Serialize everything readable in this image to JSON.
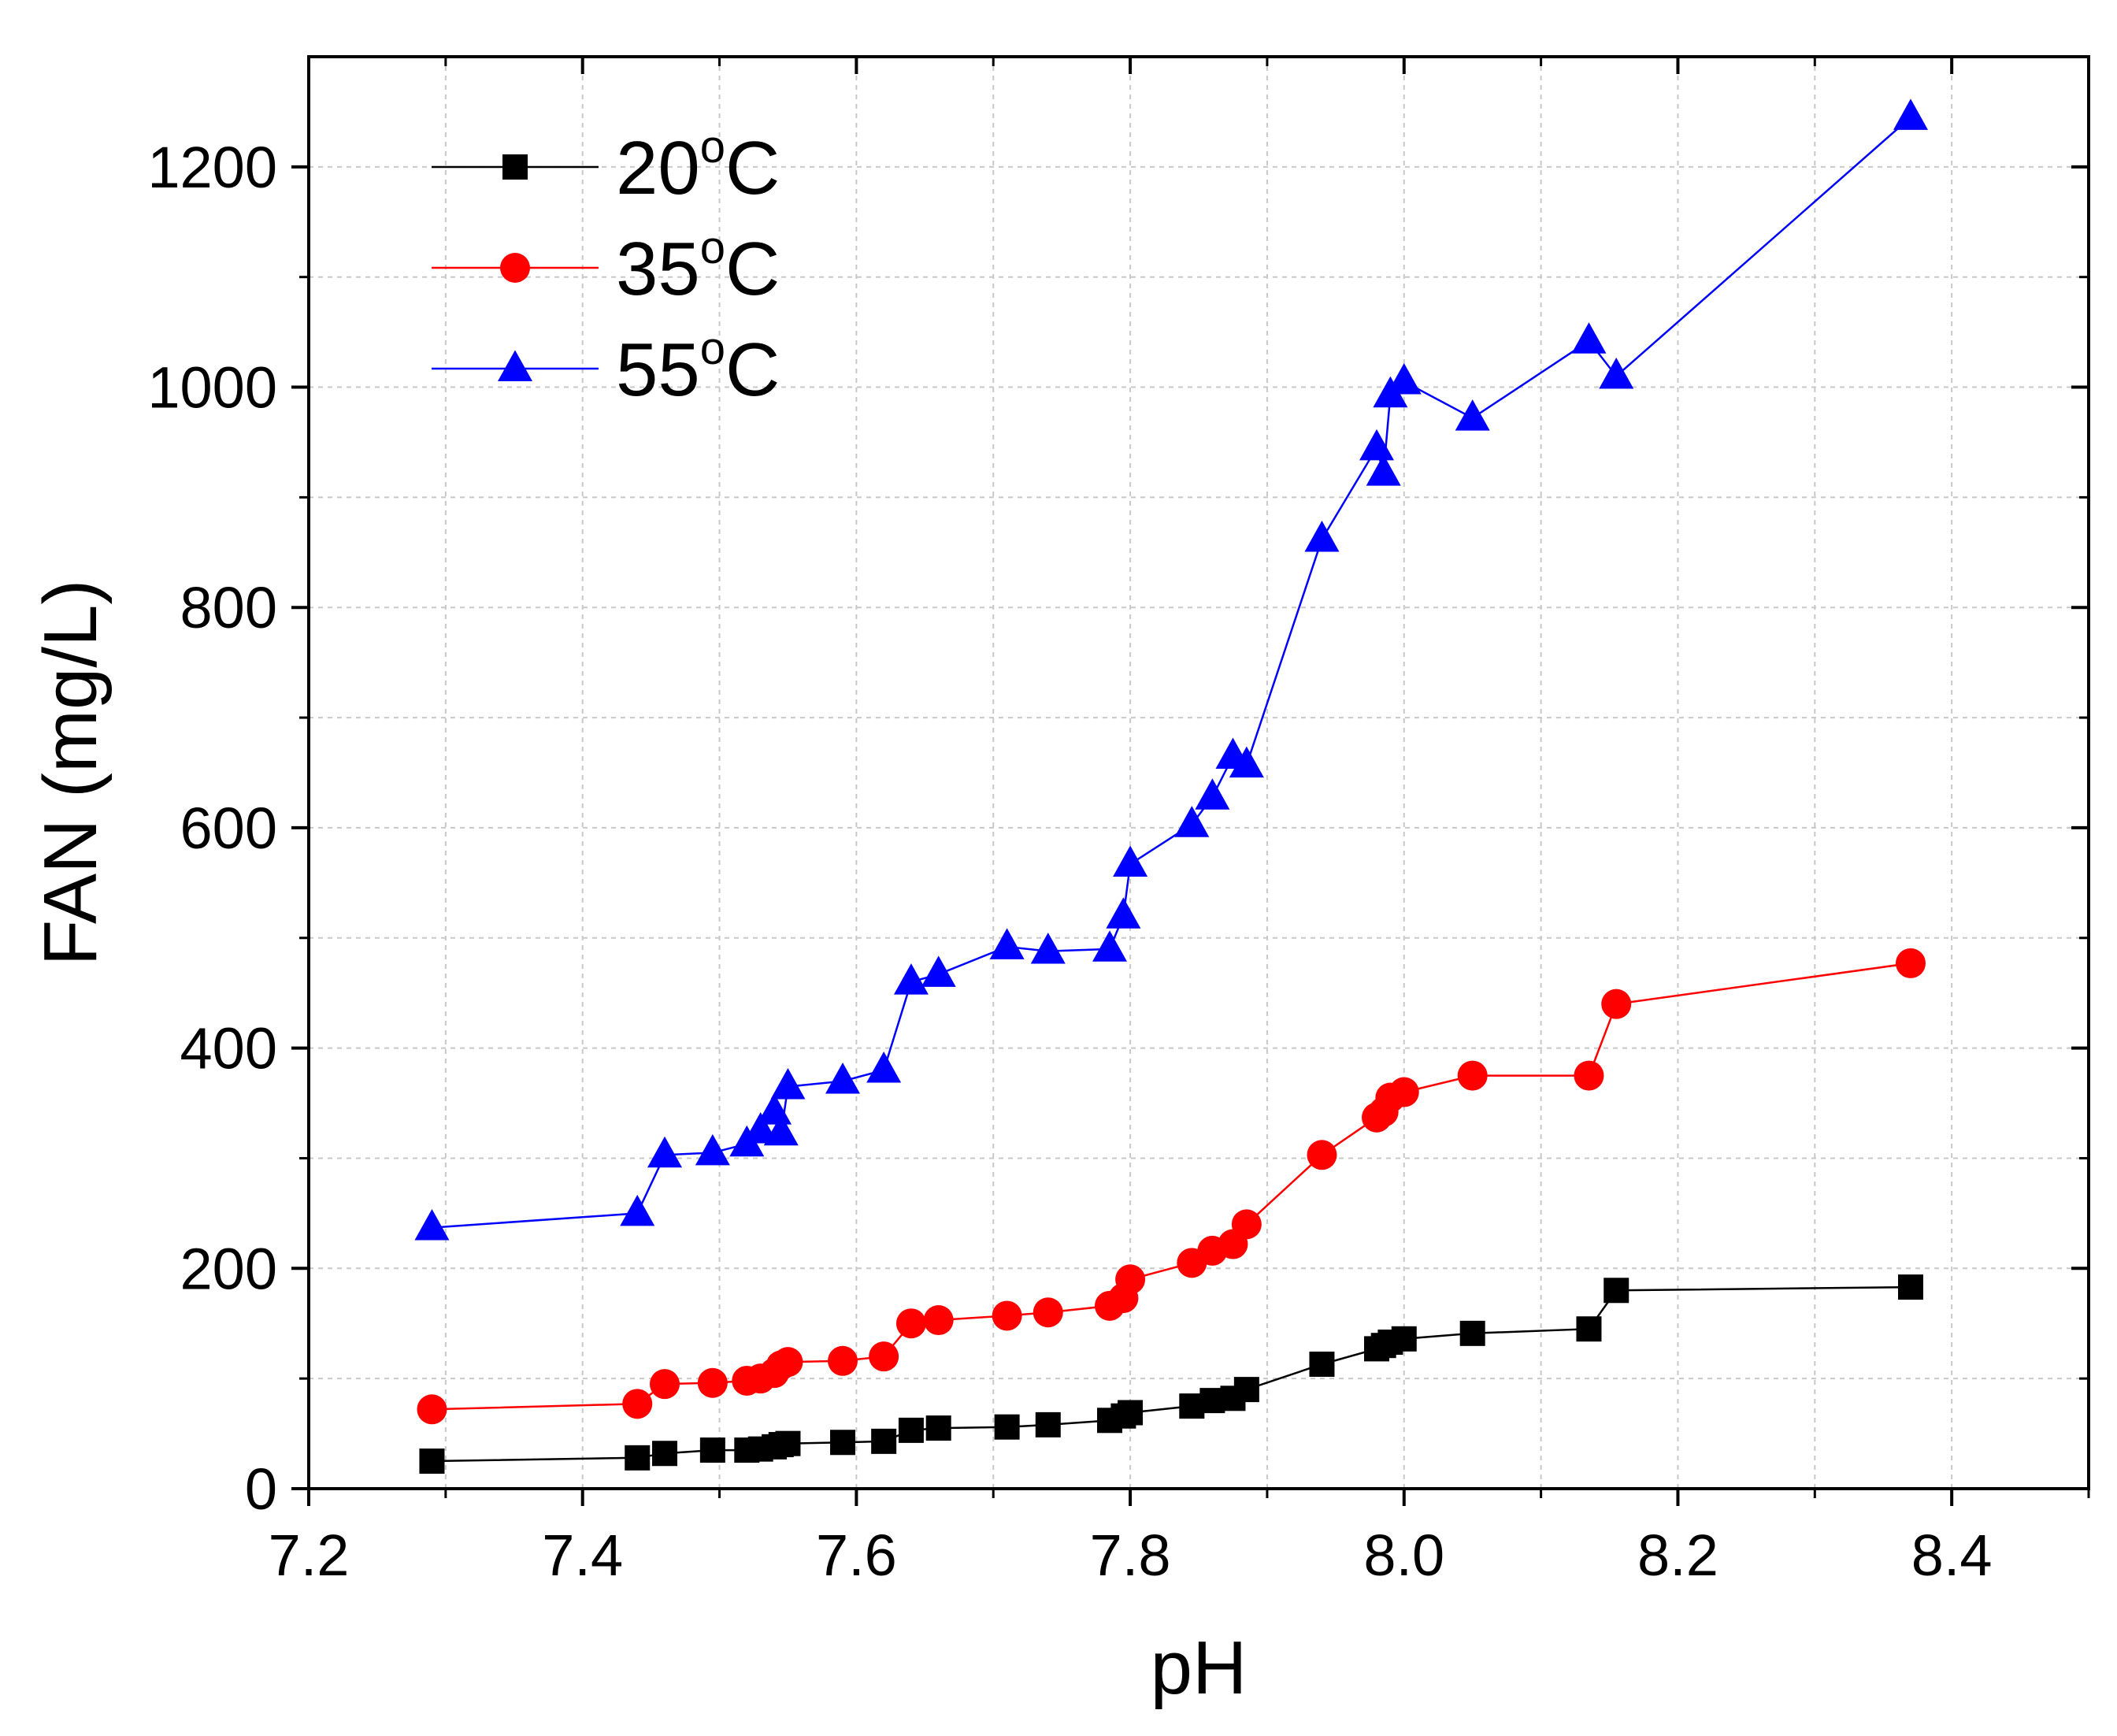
{
  "chart_data": {
    "type": "line",
    "title": "",
    "xlabel": "pH",
    "ylabel": "FAN (mg/L)",
    "xlim": [
      7.2,
      8.5
    ],
    "ylim": [
      0,
      1300
    ],
    "xticks": [
      7.2,
      7.4,
      7.6,
      7.8,
      8.0,
      8.2,
      8.4
    ],
    "xtick_labels": [
      "7.2",
      "7.4",
      "7.6",
      "7.8",
      "8.0",
      "8.2",
      "8.4"
    ],
    "yticks": [
      0,
      200,
      400,
      600,
      800,
      1000,
      1200
    ],
    "ytick_labels": [
      "0",
      "200",
      "400",
      "600",
      "800",
      "1000",
      "1200"
    ],
    "grid": true,
    "legend_position": "top-left",
    "series": [
      {
        "name": "20°C",
        "label_main": "20",
        "label_sup": "o",
        "label_unit": "C",
        "color": "#000000",
        "marker": "square",
        "x": [
          7.29,
          7.44,
          7.46,
          7.495,
          7.52,
          7.53,
          7.54,
          7.545,
          7.55,
          7.59,
          7.62,
          7.64,
          7.66,
          7.71,
          7.74,
          7.785,
          7.795,
          7.8,
          7.845,
          7.86,
          7.875,
          7.885,
          7.94,
          7.98,
          7.985,
          7.99,
          8.0,
          8.05,
          8.135,
          8.155,
          8.37
        ],
        "y": [
          25,
          28,
          32,
          35,
          35,
          36,
          38,
          40,
          41,
          42,
          43,
          53,
          55,
          56,
          58,
          62,
          66,
          69,
          75,
          80,
          82,
          90,
          113,
          127,
          130,
          133,
          136,
          141,
          145,
          180,
          183
        ]
      },
      {
        "name": "35°C",
        "label_main": "35",
        "label_sup": "o",
        "label_unit": "C",
        "color": "#ff0000",
        "marker": "circle",
        "x": [
          7.29,
          7.44,
          7.46,
          7.495,
          7.52,
          7.53,
          7.54,
          7.545,
          7.55,
          7.59,
          7.62,
          7.64,
          7.66,
          7.71,
          7.74,
          7.785,
          7.795,
          7.8,
          7.845,
          7.86,
          7.875,
          7.885,
          7.94,
          7.98,
          7.985,
          7.99,
          8.0,
          8.05,
          8.135,
          8.155,
          8.37
        ],
        "y": [
          72,
          77,
          95,
          96,
          98,
          100,
          105,
          112,
          115,
          116,
          120,
          150,
          153,
          157,
          160,
          166,
          173,
          190,
          205,
          216,
          222,
          240,
          303,
          337,
          342,
          355,
          360,
          375,
          375,
          440,
          477
        ]
      },
      {
        "name": "55°C",
        "label_main": "55",
        "label_sup": "o",
        "label_unit": "C",
        "color": "#0000ff",
        "marker": "triangle",
        "x": [
          7.29,
          7.44,
          7.46,
          7.495,
          7.52,
          7.53,
          7.54,
          7.545,
          7.55,
          7.59,
          7.62,
          7.64,
          7.66,
          7.71,
          7.74,
          7.785,
          7.795,
          7.8,
          7.845,
          7.86,
          7.875,
          7.885,
          7.94,
          7.98,
          7.985,
          7.99,
          8.0,
          8.05,
          8.135,
          8.155,
          8.37
        ],
        "y": [
          237,
          250,
          303,
          305,
          313,
          325,
          342,
          323,
          365,
          370,
          380,
          460,
          467,
          492,
          488,
          490,
          520,
          567,
          603,
          628,
          665,
          657,
          862,
          945,
          922,
          993,
          1005,
          972,
          1042,
          1010,
          1245
        ]
      }
    ]
  }
}
